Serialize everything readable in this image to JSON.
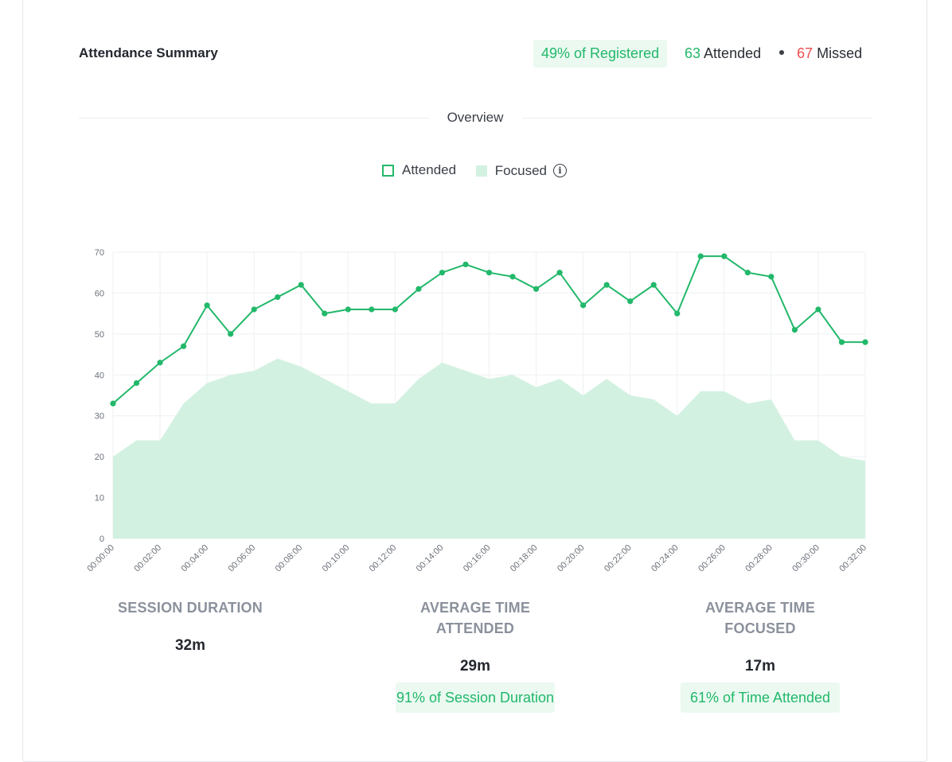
{
  "header": {
    "title": "Attendance Summary",
    "registered_badge": "49% of Registered",
    "attended_count": "63",
    "attended_label": "Attended",
    "missed_count": "67",
    "missed_label": "Missed"
  },
  "section": {
    "overview_label": "Overview"
  },
  "legend": {
    "attended": "Attended",
    "focused": "Focused",
    "info_icon": "info-icon"
  },
  "colors": {
    "accent": "#22b86a",
    "area": "#d3f1e1",
    "missed": "#ef4e4e"
  },
  "chart_data": {
    "type": "line",
    "title": "",
    "xlabel": "",
    "ylabel": "",
    "ylim": [
      0,
      70
    ],
    "yticks": [
      0,
      10,
      20,
      30,
      40,
      50,
      60,
      70
    ],
    "grid": true,
    "legend_position": "top-center",
    "x": [
      "00:00:00",
      "00:01:00",
      "00:02:00",
      "00:03:00",
      "00:04:00",
      "00:05:00",
      "00:06:00",
      "00:07:00",
      "00:08:00",
      "00:09:00",
      "00:10:00",
      "00:11:00",
      "00:12:00",
      "00:13:00",
      "00:14:00",
      "00:15:00",
      "00:16:00",
      "00:17:00",
      "00:18:00",
      "00:19:00",
      "00:20:00",
      "00:21:00",
      "00:22:00",
      "00:23:00",
      "00:24:00",
      "00:25:00",
      "00:26:00",
      "00:27:00",
      "00:28:00",
      "00:29:00",
      "00:30:00",
      "00:31:00",
      "00:32:00"
    ],
    "xticks": [
      "00:00:00",
      "00:02:00",
      "00:04:00",
      "00:06:00",
      "00:08:00",
      "00:10:00",
      "00:12:00",
      "00:14:00",
      "00:16:00",
      "00:18:00",
      "00:20:00",
      "00:22:00",
      "00:24:00",
      "00:26:00",
      "00:28:00",
      "00:30:00",
      "00:32:00"
    ],
    "series": [
      {
        "name": "Attended",
        "kind": "line",
        "values": [
          33,
          38,
          43,
          47,
          57,
          50,
          56,
          59,
          62,
          55,
          56,
          56,
          56,
          61,
          65,
          67,
          65,
          64,
          61,
          65,
          57,
          62,
          58,
          62,
          55,
          69,
          69,
          65,
          64,
          51,
          56,
          48,
          48
        ]
      },
      {
        "name": "Focused",
        "kind": "area",
        "values": [
          20,
          24,
          24,
          33,
          38,
          40,
          41,
          44,
          42,
          39,
          36,
          33,
          33,
          39,
          43,
          41,
          39,
          40,
          37,
          39,
          35,
          39,
          35,
          34,
          30,
          36,
          36,
          33,
          34,
          24,
          24,
          20,
          19
        ]
      }
    ]
  },
  "stats": [
    {
      "label": "SESSION DURATION",
      "value": "32m",
      "badge": ""
    },
    {
      "label": "AVERAGE TIME ATTENDED",
      "value": "29m",
      "badge": "91% of Session Duration"
    },
    {
      "label": "AVERAGE TIME FOCUSED",
      "value": "17m",
      "badge": "61% of Time Attended"
    }
  ]
}
